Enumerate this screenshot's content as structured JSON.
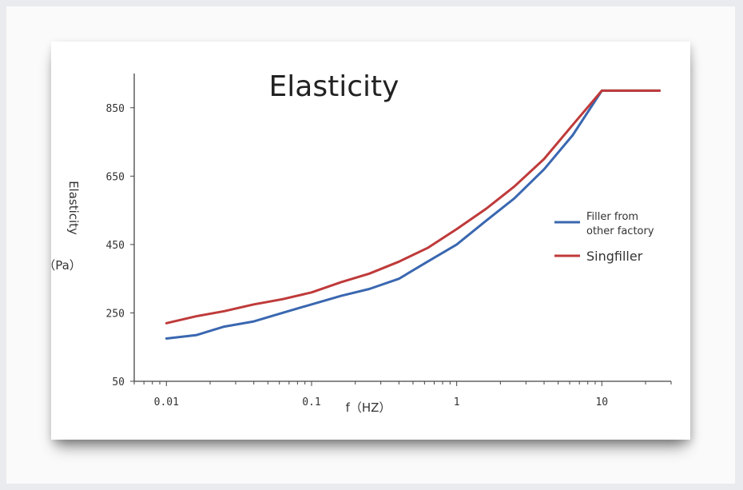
{
  "chart_data": {
    "type": "line",
    "title": "Elasticity",
    "xlabel": "f（HZ）",
    "ylabel": "Elasticity",
    "ylabel_unit": "（Pa）",
    "x_scale": "log",
    "xlim": [
      0.006,
      30
    ],
    "ylim": [
      50,
      950
    ],
    "x_ticks": [
      {
        "value": 0.01,
        "label": "0.01"
      },
      {
        "value": 0.1,
        "label": "0.1"
      },
      {
        "value": 1,
        "label": "1"
      },
      {
        "value": 10,
        "label": "10"
      }
    ],
    "y_ticks": [
      {
        "value": 50,
        "label": "50"
      },
      {
        "value": 250,
        "label": "250"
      },
      {
        "value": 450,
        "label": "450"
      },
      {
        "value": 650,
        "label": "650"
      },
      {
        "value": 850,
        "label": "850"
      }
    ],
    "grid": false,
    "legend_position": "right",
    "series": [
      {
        "name": "Filler from other factory",
        "color": "#3a67b0",
        "x": [
          0.01,
          0.016,
          0.025,
          0.04,
          0.063,
          0.1,
          0.16,
          0.25,
          0.4,
          0.63,
          1,
          1.6,
          2.5,
          4,
          6.3,
          10,
          16,
          25
        ],
        "y": [
          175,
          185,
          210,
          225,
          250,
          275,
          300,
          320,
          350,
          400,
          450,
          520,
          585,
          670,
          770,
          900,
          900,
          900
        ]
      },
      {
        "name": "Singfiller",
        "color": "#bf3a3a",
        "x": [
          0.01,
          0.016,
          0.025,
          0.04,
          0.063,
          0.1,
          0.16,
          0.25,
          0.4,
          0.63,
          1,
          1.6,
          2.5,
          4,
          6.3,
          10,
          16,
          25
        ],
        "y": [
          220,
          240,
          255,
          275,
          290,
          310,
          340,
          365,
          400,
          440,
          495,
          555,
          620,
          700,
          800,
          900,
          900,
          900
        ]
      }
    ]
  }
}
